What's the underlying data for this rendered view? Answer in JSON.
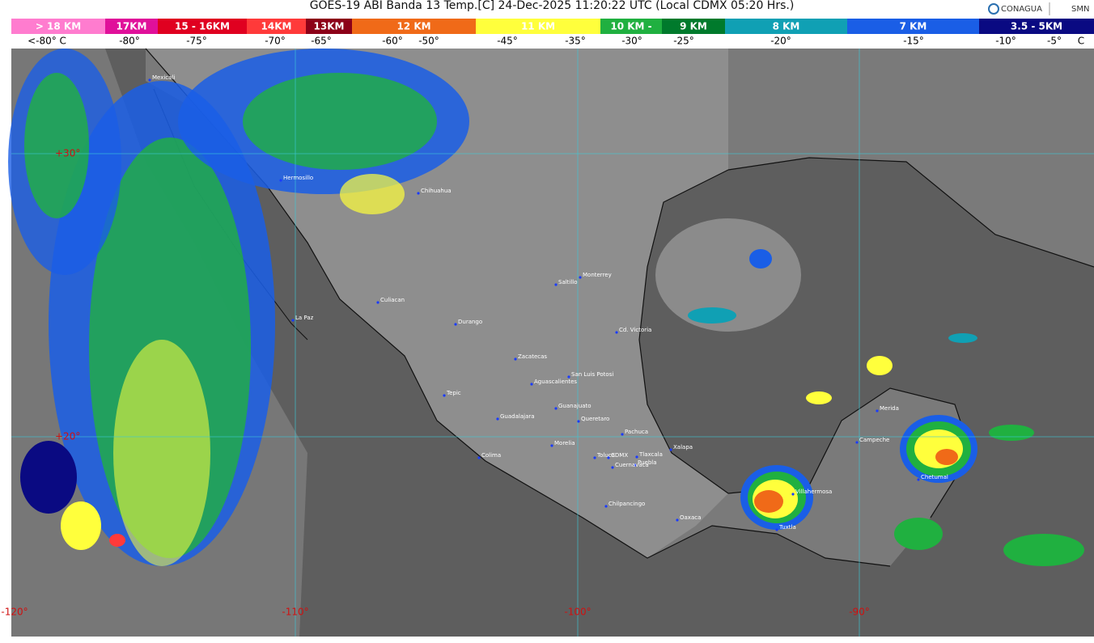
{
  "header": {
    "title": "GOES-19 ABI Banda 13 Temp.[C] 24-Dec-2025 11:20:22 UTC (Local CDMX  05:20 Hrs.)",
    "logos": [
      "CONAGUA",
      "SMN"
    ]
  },
  "legend": {
    "heights": [
      {
        "label": "> 18 KM",
        "color": "#ff7ccf"
      },
      {
        "label": "17KM",
        "color": "#e0109a"
      },
      {
        "label": "15 - 16KM",
        "color": "#e00020"
      },
      {
        "label": "14KM",
        "color": "#ff3a3a"
      },
      {
        "label": "13KM",
        "color": "#8c0018"
      },
      {
        "label": "12 KM",
        "color": "#f06a18"
      },
      {
        "label": "11 KM",
        "color": "#ffff3c"
      },
      {
        "label": "10 KM -",
        "color": "#20b040"
      },
      {
        "label": "9 KM",
        "color": "#007a2c"
      },
      {
        "label": "8 KM",
        "color": "#10a0b4"
      },
      {
        "label": "7 KM",
        "color": "#1a5ee6"
      },
      {
        "label": "3.5 - 5KM",
        "color": "#0a0a82"
      }
    ],
    "temperatures": [
      "<-80° C",
      "-80°",
      "-75°",
      "-70°",
      "-65°",
      "-60°",
      "-50°",
      "-45°",
      "-35°",
      "-30°",
      "-25°",
      "-20°",
      "-15°",
      "-10°",
      "-5°",
      "C"
    ]
  },
  "map": {
    "latitudes": [
      "+30°",
      "+20°"
    ],
    "longitudes": [
      "-120°",
      "-110°",
      "-100°",
      "-90°"
    ],
    "cities": [
      "Mexicali",
      "Hermosillo",
      "Chihuahua",
      "Culiacan",
      "La Paz",
      "Durango",
      "Saltillo",
      "Monterrey",
      "Cd. Victoria",
      "Zacatecas",
      "San Luis Potosi",
      "Aguascalientes",
      "Tepic",
      "Guanajuato",
      "Guadalajara",
      "Queretaro",
      "Pachuca",
      "Morelia",
      "Colima",
      "Toluca",
      "CDMX",
      "Tlaxcala",
      "Puebla",
      "Cuernavaca",
      "Xalapa",
      "Chilpancingo",
      "Oaxaca",
      "Villahermosa",
      "Tuxtla",
      "Merida",
      "Campeche",
      "Chetumal"
    ]
  }
}
